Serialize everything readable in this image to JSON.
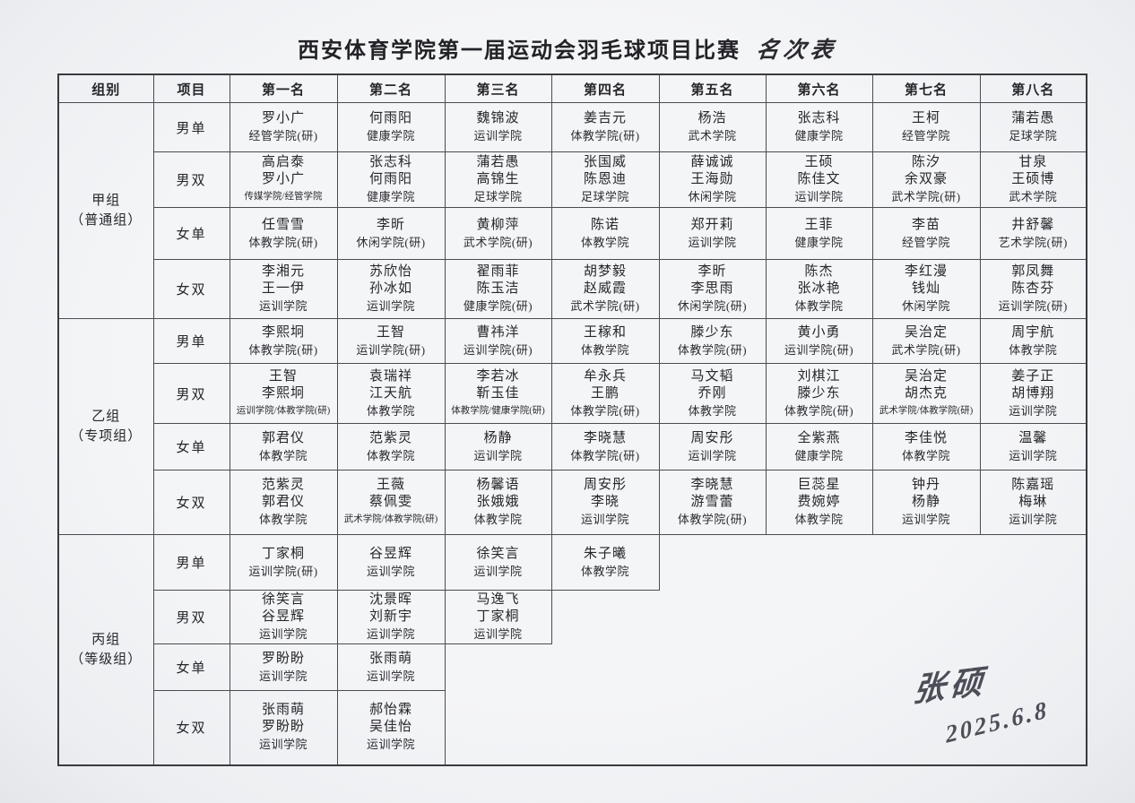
{
  "title": {
    "main": "西安体育学院第一届运动会羽毛球项目比赛",
    "suffix": "名次表"
  },
  "table": {
    "headers": [
      "组别",
      "项目",
      "第一名",
      "第二名",
      "第三名",
      "第四名",
      "第五名",
      "第六名",
      "第七名",
      "第八名"
    ],
    "groups": [
      {
        "name_lines": [
          "甲组",
          "（普通组）"
        ],
        "events": [
          {
            "event": "男单",
            "cells": [
              {
                "names": [
                  "罗小广"
                ],
                "college": "经管学院(研)"
              },
              {
                "names": [
                  "何雨阳"
                ],
                "college": "健康学院"
              },
              {
                "names": [
                  "魏锦波"
                ],
                "college": "运训学院"
              },
              {
                "names": [
                  "姜吉元"
                ],
                "college": "体教学院(研)"
              },
              {
                "names": [
                  "杨浩"
                ],
                "college": "武术学院"
              },
              {
                "names": [
                  "张志科"
                ],
                "college": "健康学院"
              },
              {
                "names": [
                  "王柯"
                ],
                "college": "经管学院"
              },
              {
                "names": [
                  "蒲若愚"
                ],
                "college": "足球学院"
              }
            ]
          },
          {
            "event": "男双",
            "cells": [
              {
                "names": [
                  "高启泰",
                  "罗小广"
                ],
                "college": "传媒学院/经管学院"
              },
              {
                "names": [
                  "张志科",
                  "何雨阳"
                ],
                "college": "健康学院"
              },
              {
                "names": [
                  "蒲若愚",
                  "高锦生"
                ],
                "college": "足球学院"
              },
              {
                "names": [
                  "张国威",
                  "陈恩迪"
                ],
                "college": "足球学院"
              },
              {
                "names": [
                  "薛诚诚",
                  "王海勋"
                ],
                "college": "休闲学院"
              },
              {
                "names": [
                  "王硕",
                  "陈佳文"
                ],
                "college": "运训学院"
              },
              {
                "names": [
                  "陈汐",
                  "余双豪"
                ],
                "college": "武术学院(研)"
              },
              {
                "names": [
                  "甘泉",
                  "王硕博"
                ],
                "college": "武术学院"
              }
            ]
          },
          {
            "event": "女单",
            "cells": [
              {
                "names": [
                  "任雪雪"
                ],
                "college": "体教学院(研)"
              },
              {
                "names": [
                  "李昕"
                ],
                "college": "休闲学院(研)"
              },
              {
                "names": [
                  "黄柳萍"
                ],
                "college": "武术学院(研)"
              },
              {
                "names": [
                  "陈诺"
                ],
                "college": "体教学院"
              },
              {
                "names": [
                  "郑开莉"
                ],
                "college": "运训学院"
              },
              {
                "names": [
                  "王菲"
                ],
                "college": "健康学院"
              },
              {
                "names": [
                  "李苗"
                ],
                "college": "经管学院"
              },
              {
                "names": [
                  "井舒馨"
                ],
                "college": "艺术学院(研)"
              }
            ]
          },
          {
            "event": "女双",
            "cells": [
              {
                "names": [
                  "李湘元",
                  "王一伊"
                ],
                "college": "运训学院"
              },
              {
                "names": [
                  "苏欣怡",
                  "孙冰如"
                ],
                "college": "运训学院"
              },
              {
                "names": [
                  "翟雨菲",
                  "陈玉洁"
                ],
                "college": "健康学院(研)"
              },
              {
                "names": [
                  "胡梦毅",
                  "赵威霞"
                ],
                "college": "武术学院(研)"
              },
              {
                "names": [
                  "李昕",
                  "李思雨"
                ],
                "college": "休闲学院(研)"
              },
              {
                "names": [
                  "陈杰",
                  "张冰艳"
                ],
                "college": "体教学院"
              },
              {
                "names": [
                  "李红漫",
                  "钱灿"
                ],
                "college": "休闲学院"
              },
              {
                "names": [
                  "郭凤舞",
                  "陈杏芬"
                ],
                "college": "运训学院(研)"
              }
            ]
          }
        ]
      },
      {
        "name_lines": [
          "乙组",
          "（专项组）"
        ],
        "events": [
          {
            "event": "男单",
            "cells": [
              {
                "names": [
                  "李熙坰"
                ],
                "college": "体教学院(研)"
              },
              {
                "names": [
                  "王智"
                ],
                "college": "运训学院(研)"
              },
              {
                "names": [
                  "曹祎洋"
                ],
                "college": "运训学院(研)"
              },
              {
                "names": [
                  "王稼和"
                ],
                "college": "体教学院"
              },
              {
                "names": [
                  "滕少东"
                ],
                "college": "体教学院(研)"
              },
              {
                "names": [
                  "黄小勇"
                ],
                "college": "运训学院(研)"
              },
              {
                "names": [
                  "吴治定"
                ],
                "college": "武术学院(研)"
              },
              {
                "names": [
                  "周宇航"
                ],
                "college": "体教学院"
              }
            ]
          },
          {
            "event": "男双",
            "cells": [
              {
                "names": [
                  "王智",
                  "李熙坰"
                ],
                "college": "运训学院/体教学院(研)"
              },
              {
                "names": [
                  "袁瑞祥",
                  "江天航"
                ],
                "college": "体教学院"
              },
              {
                "names": [
                  "李若冰",
                  "靳玉佳"
                ],
                "college": "体教学院/健康学院(研)"
              },
              {
                "names": [
                  "牟永兵",
                  "王鹏"
                ],
                "college": "体教学院(研)"
              },
              {
                "names": [
                  "马文韬",
                  "乔刚"
                ],
                "college": "体教学院"
              },
              {
                "names": [
                  "刘棋江",
                  "滕少东"
                ],
                "college": "体教学院(研)"
              },
              {
                "names": [
                  "吴治定",
                  "胡杰克"
                ],
                "college": "武术学院/体教学院(研)"
              },
              {
                "names": [
                  "姜子正",
                  "胡博翔"
                ],
                "college": "运训学院"
              }
            ]
          },
          {
            "event": "女单",
            "cells": [
              {
                "names": [
                  "郭君仪"
                ],
                "college": "体教学院"
              },
              {
                "names": [
                  "范紫灵"
                ],
                "college": "体教学院"
              },
              {
                "names": [
                  "杨静"
                ],
                "college": "运训学院"
              },
              {
                "names": [
                  "李晓慧"
                ],
                "college": "体教学院(研)"
              },
              {
                "names": [
                  "周安彤"
                ],
                "college": "运训学院"
              },
              {
                "names": [
                  "全紫燕"
                ],
                "college": "健康学院"
              },
              {
                "names": [
                  "李佳悦"
                ],
                "college": "体教学院"
              },
              {
                "names": [
                  "温馨"
                ],
                "college": "运训学院"
              }
            ]
          },
          {
            "event": "女双",
            "cells": [
              {
                "names": [
                  "范紫灵",
                  "郭君仪"
                ],
                "college": "体教学院"
              },
              {
                "names": [
                  "王薇",
                  "蔡佩雯"
                ],
                "college": "武术学院/体教学院(研)"
              },
              {
                "names": [
                  "杨馨语",
                  "张娥娥"
                ],
                "college": "体教学院"
              },
              {
                "names": [
                  "周安彤",
                  "李晓"
                ],
                "college": "运训学院"
              },
              {
                "names": [
                  "李晓慧",
                  "游雪蕾"
                ],
                "college": "体教学院(研)"
              },
              {
                "names": [
                  "巨蕊星",
                  "费婉婷"
                ],
                "college": "体教学院"
              },
              {
                "names": [
                  "钟丹",
                  "杨静"
                ],
                "college": "运训学院"
              },
              {
                "names": [
                  "陈嘉瑶",
                  "梅琳"
                ],
                "college": "运训学院"
              }
            ]
          }
        ]
      },
      {
        "name_lines": [
          "丙组",
          "（等级组）"
        ],
        "events": [
          {
            "event": "男单",
            "cells": [
              {
                "names": [
                  "丁家桐"
                ],
                "college": "运训学院(研)"
              },
              {
                "names": [
                  "谷昱辉"
                ],
                "college": "运训学院"
              },
              {
                "names": [
                  "徐笑言"
                ],
                "college": "运训学院"
              },
              {
                "names": [
                  "朱子曦"
                ],
                "college": "体教学院"
              },
              null,
              null,
              null,
              null
            ]
          },
          {
            "event": "男双",
            "cells": [
              {
                "names": [
                  "徐笑言",
                  "谷昱辉"
                ],
                "college": "运训学院"
              },
              {
                "names": [
                  "沈景晖",
                  "刘新宇"
                ],
                "college": "运训学院"
              },
              {
                "names": [
                  "马逸飞",
                  "丁家桐"
                ],
                "college": "运训学院"
              },
              null,
              null,
              null,
              null,
              null
            ]
          },
          {
            "event": "女单",
            "cells": [
              {
                "names": [
                  "罗盼盼"
                ],
                "college": "运训学院"
              },
              {
                "names": [
                  "张雨萌"
                ],
                "college": "运训学院"
              },
              null,
              null,
              null,
              null,
              null,
              null
            ]
          },
          {
            "event": "女双",
            "cells": [
              {
                "names": [
                  "张雨萌",
                  "罗盼盼"
                ],
                "college": "运训学院"
              },
              {
                "names": [
                  "郝怡霖",
                  "吴佳怡"
                ],
                "college": "运训学院"
              },
              null,
              null,
              null,
              null,
              null,
              null
            ]
          }
        ]
      }
    ]
  },
  "signature": {
    "name": "张硕",
    "date": "2025.6.8"
  }
}
